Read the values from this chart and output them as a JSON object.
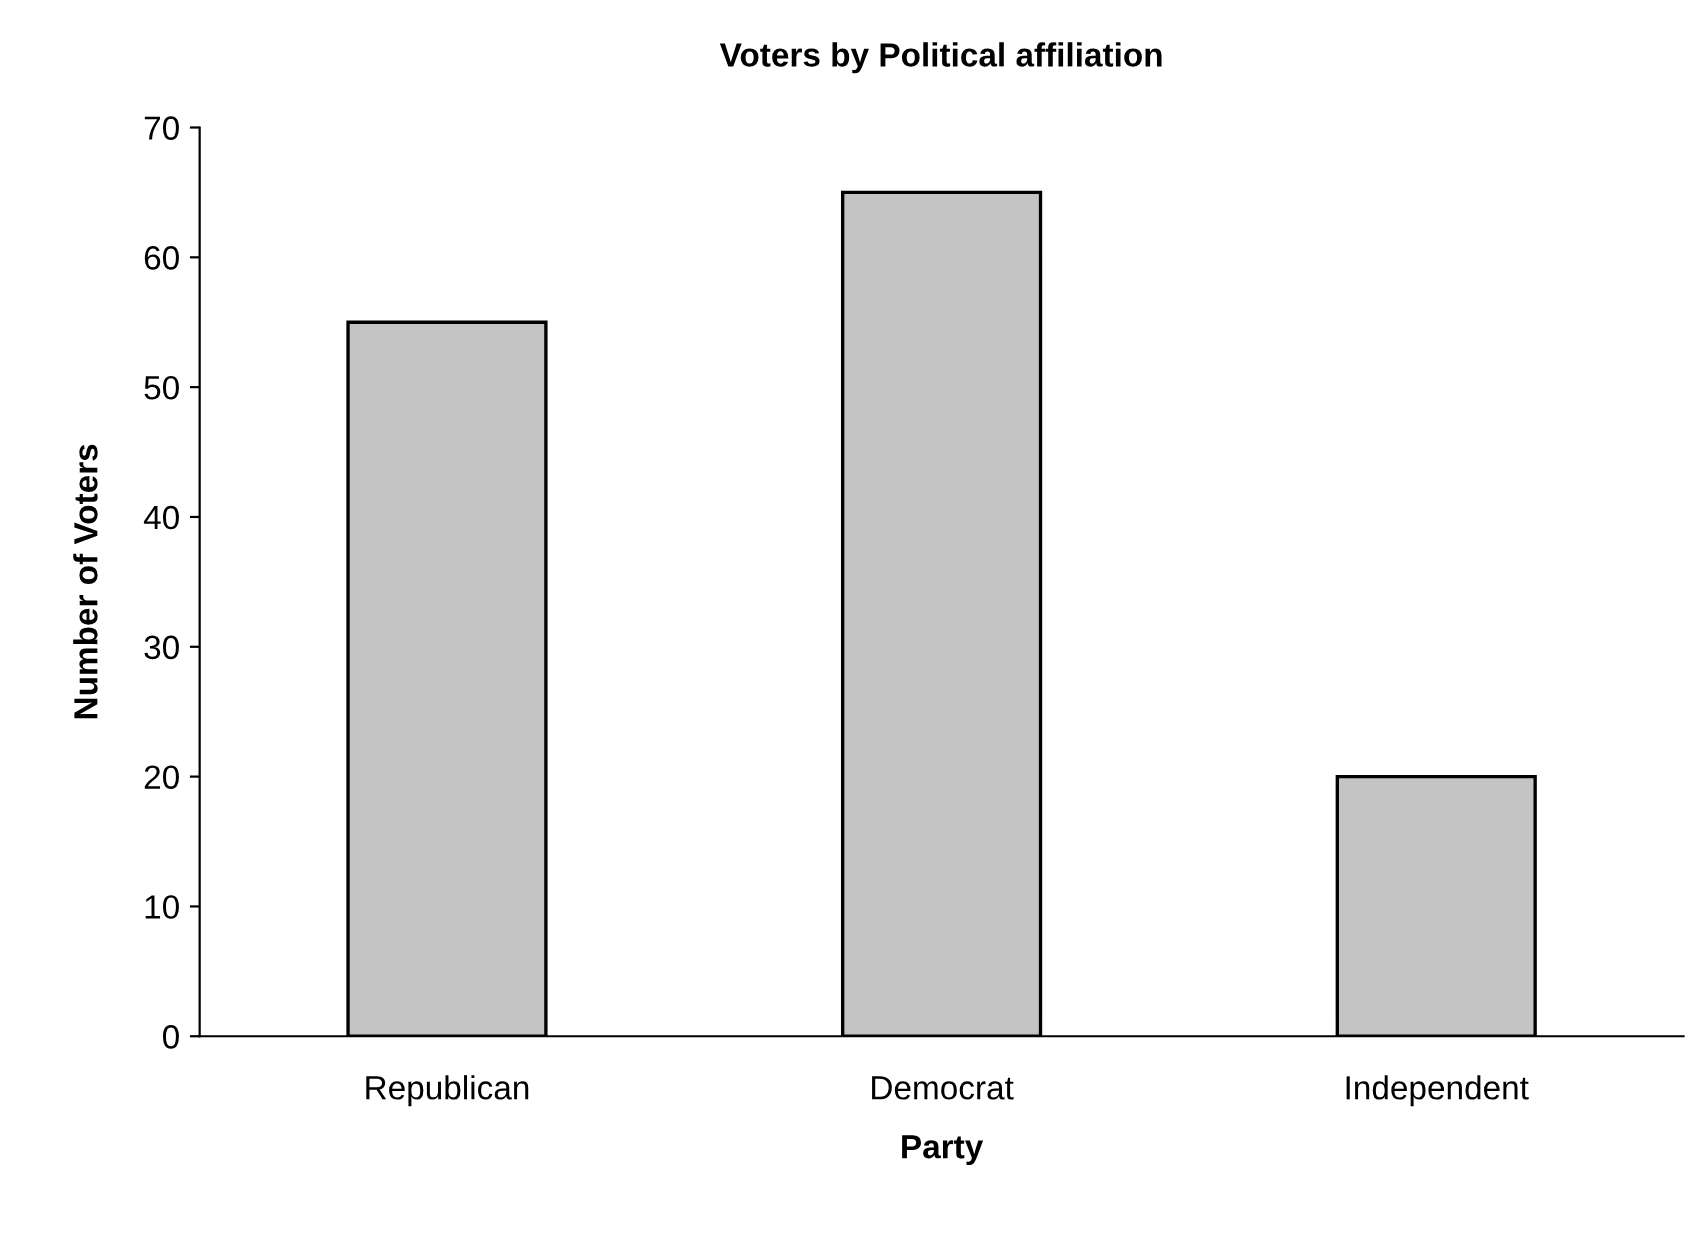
{
  "chart_data": {
    "type": "bar",
    "title": "Voters by Political affiliation",
    "xlabel": "Party",
    "ylabel": "Number of Voters",
    "categories": [
      "Republican",
      "Democrat",
      "Independent"
    ],
    "values": [
      55,
      65,
      20
    ],
    "color": "#c4c4c4",
    "ylim": [
      0,
      70
    ],
    "yticks": [
      0,
      10,
      20,
      30,
      40,
      50,
      60,
      70
    ],
    "grid": false,
    "legend": false
  }
}
